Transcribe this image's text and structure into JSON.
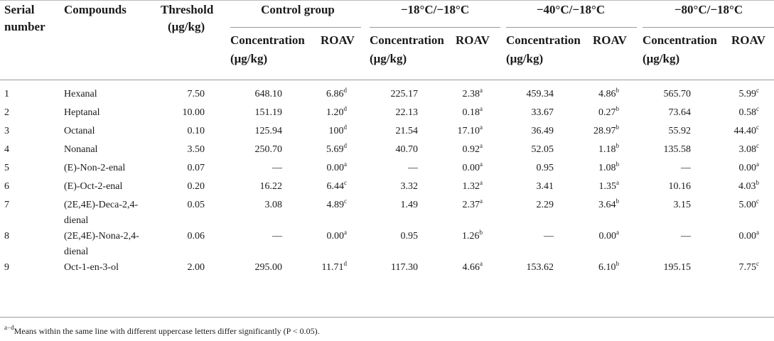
{
  "table": {
    "headers": {
      "serial": [
        "Serial",
        "number"
      ],
      "compounds": "Compounds",
      "threshold": [
        "Threshold",
        "(μg/kg)"
      ],
      "groups": [
        "Control group",
        "−18°C/−18°C",
        "−40°C/−18°C",
        "−80°C/−18°C"
      ],
      "conc_label": [
        "Concentration",
        "(μg/kg)"
      ],
      "roav_label": "ROAV"
    },
    "rows": [
      {
        "n": "1",
        "name": [
          "Hexanal"
        ],
        "threshold": "7.50",
        "values": [
          [
            "648.10",
            "6.86",
            "d"
          ],
          [
            "225.17",
            "2.38",
            "a"
          ],
          [
            "459.34",
            "4.86",
            "b"
          ],
          [
            "565.70",
            "5.99",
            "c"
          ]
        ]
      },
      {
        "n": "2",
        "name": [
          "Heptanal"
        ],
        "threshold": "10.00",
        "values": [
          [
            "151.19",
            "1.20",
            "d"
          ],
          [
            "22.13",
            "0.18",
            "a"
          ],
          [
            "33.67",
            "0.27",
            "b"
          ],
          [
            "73.64",
            "0.58",
            "c"
          ]
        ]
      },
      {
        "n": "3",
        "name": [
          "Octanal"
        ],
        "threshold": "0.10",
        "values": [
          [
            "125.94",
            "100",
            "d"
          ],
          [
            "21.54",
            "17.10",
            "a"
          ],
          [
            "36.49",
            "28.97",
            "b"
          ],
          [
            "55.92",
            "44.40",
            "c"
          ]
        ]
      },
      {
        "n": "4",
        "name": [
          "Nonanal"
        ],
        "threshold": "3.50",
        "values": [
          [
            "250.70",
            "5.69",
            "d"
          ],
          [
            "40.70",
            "0.92",
            "a"
          ],
          [
            "52.05",
            "1.18",
            "b"
          ],
          [
            "135.58",
            "3.08",
            "c"
          ]
        ]
      },
      {
        "n": "5",
        "name": [
          "(E)-Non-2-enal"
        ],
        "threshold": "0.07",
        "values": [
          [
            "—",
            "0.00",
            "a"
          ],
          [
            "—",
            "0.00",
            "a"
          ],
          [
            "0.95",
            "1.08",
            "b"
          ],
          [
            "—",
            "0.00",
            "a"
          ]
        ]
      },
      {
        "n": "6",
        "name": [
          "(E)-Oct-2-enal"
        ],
        "threshold": "0.20",
        "values": [
          [
            "16.22",
            "6.44",
            "c"
          ],
          [
            "3.32",
            "1.32",
            "a"
          ],
          [
            "3.41",
            "1.35",
            "a"
          ],
          [
            "10.16",
            "4.03",
            "b"
          ]
        ]
      },
      {
        "n": "7",
        "name": [
          "(2E,4E)-Deca-2,4-",
          "dienal"
        ],
        "threshold": "0.05",
        "values": [
          [
            "3.08",
            "4.89",
            "c"
          ],
          [
            "1.49",
            "2.37",
            "a"
          ],
          [
            "2.29",
            "3.64",
            "b"
          ],
          [
            "3.15",
            "5.00",
            "c"
          ]
        ]
      },
      {
        "n": "8",
        "name": [
          "(2E,4E)-Nona-2,4-",
          "dienal"
        ],
        "threshold": "0.06",
        "values": [
          [
            "—",
            "0.00",
            "a"
          ],
          [
            "0.95",
            "1.26",
            "b"
          ],
          [
            "—",
            "0.00",
            "a"
          ],
          [
            "—",
            "0.00",
            "a"
          ]
        ]
      },
      {
        "n": "9",
        "name": [
          "Oct-1-en-3-ol"
        ],
        "threshold": "2.00",
        "values": [
          [
            "295.00",
            "11.71",
            "d"
          ],
          [
            "117.30",
            "4.66",
            "a"
          ],
          [
            "153.62",
            "6.10",
            "b"
          ],
          [
            "195.15",
            "7.75",
            "c"
          ]
        ]
      }
    ]
  },
  "footnote": {
    "marker": "a−d",
    "text": "Means within the same line with different uppercase letters differ significantly (P < 0.05)."
  }
}
